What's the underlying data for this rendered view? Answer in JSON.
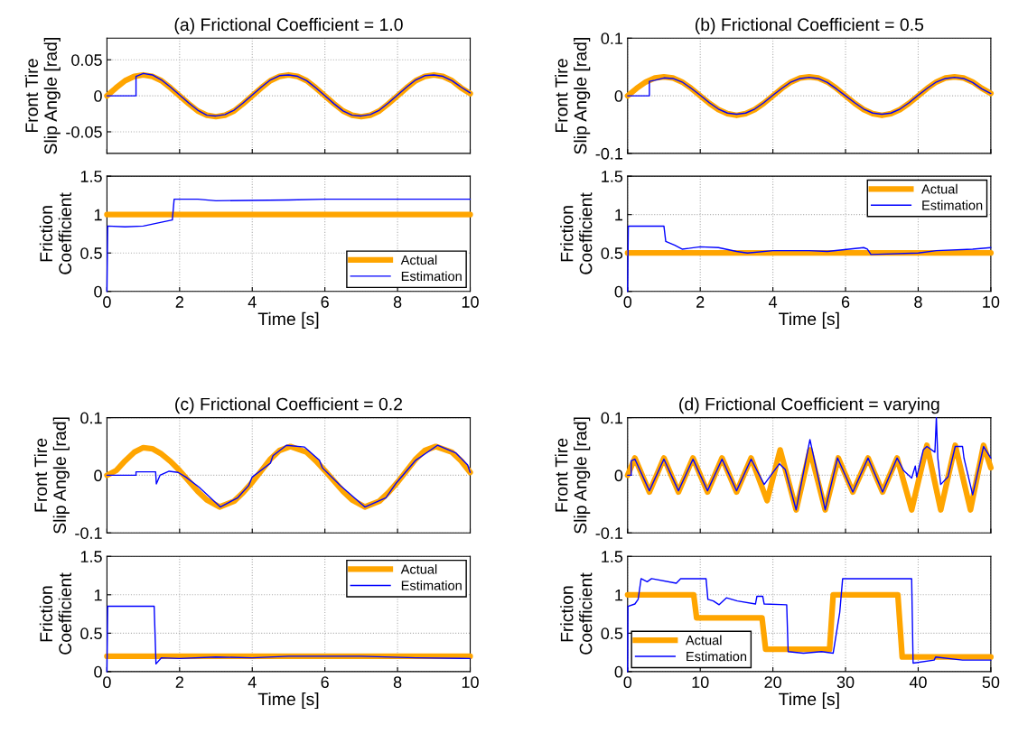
{
  "chart_data": [
    {
      "type": "line",
      "title": "(a) Frictional Coefficient = 1.0",
      "ylabel": "Front Tire\nSlip Angle [rad]",
      "xlim": [
        0,
        10
      ],
      "xticks": [
        0,
        2,
        4,
        6,
        8,
        10
      ],
      "ylim": [
        -0.08,
        0.08
      ],
      "yticks": [
        -0.05,
        0,
        0.05
      ],
      "grid": true,
      "tick_labels": "y",
      "series": [
        {
          "color": "#ffa500",
          "x": [
            0,
            0.25,
            0.5,
            0.75,
            1,
            1.25,
            1.5,
            1.75,
            2,
            2.25,
            2.5,
            2.75,
            3,
            3.25,
            3.5,
            3.75,
            4,
            4.25,
            4.5,
            4.75,
            5,
            5.25,
            5.5,
            5.75,
            6,
            6.25,
            6.5,
            6.75,
            7,
            7.25,
            7.5,
            7.75,
            8,
            8.25,
            8.5,
            8.75,
            9,
            9.25,
            9.5,
            9.75,
            10
          ],
          "values": [
            0,
            0.011,
            0.021,
            0.027,
            0.029,
            0.027,
            0.021,
            0.011,
            0,
            -0.011,
            -0.021,
            -0.027,
            -0.029,
            -0.027,
            -0.021,
            -0.011,
            0,
            0.011,
            0.021,
            0.027,
            0.029,
            0.027,
            0.021,
            0.011,
            0,
            -0.011,
            -0.021,
            -0.027,
            -0.029,
            -0.027,
            -0.021,
            -0.011,
            0,
            0.011,
            0.021,
            0.027,
            0.029,
            0.027,
            0.021,
            0.011,
            0.003
          ]
        },
        {
          "color": "#0000ff",
          "x": [
            0,
            0.8,
            0.8,
            1,
            1.25,
            1.5,
            1.75,
            2,
            2.25,
            2.5,
            2.75,
            3,
            3.25,
            3.5,
            3.75,
            4,
            4.25,
            4.5,
            4.75,
            5,
            5.25,
            5.5,
            5.75,
            6,
            6.25,
            6.5,
            6.75,
            7,
            7.25,
            7.5,
            7.75,
            8,
            8.25,
            8.5,
            8.75,
            9,
            9.25,
            9.5,
            9.75,
            10
          ],
          "values": [
            0,
            0,
            0.027,
            0.031,
            0.029,
            0.022,
            0.012,
            0.001,
            -0.01,
            -0.02,
            -0.027,
            -0.028,
            -0.026,
            -0.02,
            -0.01,
            0.001,
            0.012,
            0.022,
            0.028,
            0.029,
            0.027,
            0.021,
            0.011,
            0,
            -0.011,
            -0.021,
            -0.027,
            -0.028,
            -0.026,
            -0.02,
            -0.01,
            0.001,
            0.012,
            0.022,
            0.028,
            0.029,
            0.027,
            0.021,
            0.012,
            0.004
          ]
        }
      ]
    },
    {
      "type": "line",
      "title": "(b) Frictional Coefficient = 0.5",
      "ylabel": "Front Tire\nSlip Angle [rad]",
      "xlim": [
        0,
        10
      ],
      "xticks": [
        0,
        2,
        4,
        6,
        8,
        10
      ],
      "ylim": [
        -0.1,
        0.1
      ],
      "yticks": [
        -0.1,
        0,
        0.1
      ],
      "grid": true,
      "tick_labels": "y",
      "series": [
        {
          "color": "#ffa500",
          "x": [
            0,
            0.25,
            0.5,
            0.75,
            1,
            1.25,
            1.5,
            1.75,
            2,
            2.25,
            2.5,
            2.75,
            3,
            3.25,
            3.5,
            3.75,
            4,
            4.25,
            4.5,
            4.75,
            5,
            5.25,
            5.5,
            5.75,
            6,
            6.25,
            6.5,
            6.75,
            7,
            7.25,
            7.5,
            7.75,
            8,
            8.25,
            8.5,
            8.75,
            9,
            9.25,
            9.5,
            9.75,
            10
          ],
          "values": [
            0,
            0.013,
            0.024,
            0.031,
            0.033,
            0.031,
            0.024,
            0.013,
            0,
            -0.013,
            -0.024,
            -0.031,
            -0.034,
            -0.031,
            -0.024,
            -0.013,
            0,
            0.013,
            0.024,
            0.031,
            0.033,
            0.031,
            0.024,
            0.013,
            0,
            -0.013,
            -0.024,
            -0.031,
            -0.034,
            -0.031,
            -0.024,
            -0.013,
            0,
            0.013,
            0.024,
            0.031,
            0.033,
            0.031,
            0.024,
            0.013,
            0.004
          ]
        },
        {
          "color": "#0000ff",
          "x": [
            0,
            0.6,
            0.6,
            0.75,
            1,
            1.25,
            1.5,
            1.75,
            2,
            2.25,
            2.5,
            2.75,
            3,
            3.25,
            3.5,
            3.75,
            4,
            4.25,
            4.5,
            4.75,
            5,
            5.25,
            5.5,
            5.75,
            6,
            6.25,
            6.5,
            6.75,
            7,
            7.25,
            7.5,
            7.75,
            8,
            8.25,
            8.5,
            8.75,
            9,
            9.25,
            9.5,
            9.75,
            10
          ],
          "values": [
            0,
            0,
            0.025,
            0.027,
            0.031,
            0.03,
            0.024,
            0.013,
            0.001,
            -0.012,
            -0.023,
            -0.03,
            -0.032,
            -0.03,
            -0.023,
            -0.012,
            0.001,
            0.013,
            0.024,
            0.03,
            0.032,
            0.03,
            0.023,
            0.012,
            0,
            -0.012,
            -0.023,
            -0.03,
            -0.032,
            -0.03,
            -0.023,
            -0.012,
            0.001,
            0.013,
            0.024,
            0.03,
            0.032,
            0.03,
            0.023,
            0.012,
            0.004
          ]
        }
      ]
    },
    {
      "type": "line",
      "ylabel": "Friction\nCoefficient",
      "xlabel": "Time [s]",
      "xlim": [
        0,
        10
      ],
      "xticks": [
        0,
        2,
        4,
        6,
        8,
        10
      ],
      "ylim": [
        0,
        1.5
      ],
      "yticks": [
        0,
        0.5,
        1,
        1.5
      ],
      "grid": true,
      "legend": "bottom right",
      "series": [
        {
          "name": "Actual",
          "color": "#ffa500",
          "x": [
            0,
            10
          ],
          "values": [
            1,
            1
          ]
        },
        {
          "name": "Estimation",
          "color": "#0000ff",
          "x": [
            0,
            0.02,
            0.5,
            1,
            1.5,
            1.8,
            1.85,
            2.5,
            3,
            5,
            6,
            10
          ],
          "values": [
            0,
            0.85,
            0.84,
            0.85,
            0.9,
            0.93,
            1.2,
            1.2,
            1.18,
            1.19,
            1.2,
            1.2
          ]
        }
      ]
    },
    {
      "type": "line",
      "ylabel": "Friction\nCoefficient",
      "xlabel": "Time [s]",
      "xlim": [
        0,
        10
      ],
      "xticks": [
        0,
        2,
        4,
        6,
        8,
        10
      ],
      "ylim": [
        0,
        1.5
      ],
      "yticks": [
        0,
        0.5,
        1,
        1.5
      ],
      "grid": true,
      "legend": "upper right",
      "series": [
        {
          "name": "Actual",
          "color": "#ffa500",
          "x": [
            0,
            10
          ],
          "values": [
            0.5,
            0.5
          ]
        },
        {
          "name": "Estimation",
          "color": "#0000ff",
          "x": [
            0,
            0.02,
            1,
            1.05,
            1.3,
            1.5,
            2,
            2.5,
            3,
            3.3,
            4,
            5,
            5.5,
            6.5,
            6.6,
            6.7,
            8,
            8.5,
            9.5,
            10
          ],
          "values": [
            0,
            0.85,
            0.85,
            0.65,
            0.6,
            0.55,
            0.58,
            0.57,
            0.52,
            0.5,
            0.53,
            0.53,
            0.52,
            0.57,
            0.55,
            0.48,
            0.5,
            0.53,
            0.55,
            0.57
          ]
        }
      ]
    },
    {
      "type": "line",
      "title": "(c) Frictional Coefficient = 0.2",
      "ylabel": "Front Tire\nSlip Angle [rad]",
      "xlim": [
        0,
        10
      ],
      "xticks": [
        0,
        2,
        4,
        6,
        8,
        10
      ],
      "ylim": [
        -0.1,
        0.1
      ],
      "yticks": [
        -0.1,
        0,
        0.1
      ],
      "grid": true,
      "tick_labels": "y",
      "series": [
        {
          "color": "#ffa500",
          "x": [
            0,
            0.25,
            0.5,
            0.75,
            1,
            1.25,
            1.5,
            1.75,
            2,
            2.25,
            2.5,
            2.75,
            3.1,
            3.5,
            3.75,
            4,
            4.25,
            4.5,
            4.75,
            5.05,
            5.5,
            5.75,
            6,
            6.25,
            6.5,
            6.75,
            7.1,
            7.5,
            7.75,
            8,
            8.25,
            8.5,
            8.75,
            9.05,
            9.5,
            9.75,
            10
          ],
          "values": [
            0,
            0.008,
            0.025,
            0.04,
            0.048,
            0.046,
            0.037,
            0.024,
            0.008,
            -0.01,
            -0.028,
            -0.043,
            -0.055,
            -0.045,
            -0.03,
            -0.012,
            0.008,
            0.028,
            0.043,
            0.05,
            0.04,
            0.025,
            0.008,
            -0.01,
            -0.028,
            -0.043,
            -0.055,
            -0.045,
            -0.03,
            -0.012,
            0.008,
            0.028,
            0.043,
            0.05,
            0.04,
            0.025,
            0.005
          ]
        },
        {
          "color": "#0000ff",
          "x": [
            0,
            0.8,
            0.8,
            1.34,
            1.36,
            1.46,
            1.71,
            1.96,
            2.17,
            2.54,
            3.12,
            3.6,
            3.9,
            4.0,
            4.5,
            4.57,
            4.94,
            5.44,
            5.85,
            5.93,
            6.43,
            7.1,
            7.68,
            7.97,
            8.5,
            9.1,
            9.6,
            9.93,
            10
          ],
          "values": [
            0,
            0,
            0.006,
            0.006,
            -0.015,
            0,
            0.007,
            0.005,
            -0.003,
            -0.021,
            -0.055,
            -0.039,
            -0.018,
            -0.003,
            0.021,
            0.034,
            0.052,
            0.049,
            0.026,
            0.013,
            -0.018,
            -0.055,
            -0.039,
            -0.013,
            0.026,
            0.052,
            0.039,
            0.018,
            0.005
          ]
        }
      ]
    },
    {
      "type": "line",
      "title": "(d) Frictional Coefficient = varying",
      "ylabel": "Front Tire\nSlip Angle [rad]",
      "xlim": [
        0,
        50
      ],
      "xticks": [
        0,
        10,
        20,
        30,
        40,
        50
      ],
      "ylim": [
        -0.1,
        0.1
      ],
      "yticks": [
        -0.1,
        0,
        0.1
      ],
      "grid": true,
      "tick_labels": "y",
      "series": [
        {
          "color": "#ffa500",
          "x": [
            0,
            1,
            3,
            5,
            7,
            9,
            11,
            13,
            15,
            17,
            19.2,
            21,
            23.2,
            25.1,
            27.2,
            29,
            31,
            33.1,
            35.1,
            37.1,
            39.1,
            41.2,
            43.1,
            45.1,
            47.2,
            49,
            50
          ],
          "values": [
            0,
            0.03,
            -0.029,
            0.03,
            -0.029,
            0.03,
            -0.029,
            0.03,
            -0.029,
            0.03,
            -0.044,
            0.044,
            -0.06,
            0.044,
            -0.06,
            0.03,
            -0.029,
            0.03,
            -0.029,
            0.03,
            -0.06,
            0.052,
            -0.06,
            0.052,
            -0.06,
            0.052,
            0.013
          ]
        },
        {
          "color": "#0000ff",
          "x": [
            0,
            0.5,
            0.5,
            1,
            3,
            5,
            7,
            9,
            11,
            13,
            15,
            17,
            18.8,
            20.9,
            21.7,
            23.2,
            25.1,
            27.2,
            28.9,
            31,
            33.1,
            35.1,
            37.1,
            38,
            39.1,
            39.6,
            39.8,
            40.7,
            41.2,
            42.3,
            42.5,
            42.7,
            43.1,
            44.1,
            45.1,
            46.1,
            46.3,
            47.5,
            49,
            50
          ],
          "values": [
            0,
            0,
            0.025,
            0.028,
            -0.027,
            0.028,
            -0.027,
            0.028,
            -0.027,
            0.028,
            -0.027,
            0.028,
            -0.016,
            0.02,
            0.01,
            -0.06,
            0.062,
            -0.06,
            0.03,
            -0.029,
            0.03,
            -0.029,
            0.03,
            0.008,
            -0.005,
            0.016,
            -0.003,
            0.044,
            0.05,
            0.04,
            0.1,
            0.03,
            -0.016,
            -0.003,
            0.05,
            0.05,
            0.03,
            -0.034,
            0.05,
            0.03
          ]
        }
      ]
    },
    {
      "type": "line",
      "ylabel": "Friction\nCoefficient",
      "xlabel": "Time [s]",
      "xlim": [
        0,
        10
      ],
      "xticks": [
        0,
        2,
        4,
        6,
        8,
        10
      ],
      "ylim": [
        0,
        1.5
      ],
      "yticks": [
        0,
        0.5,
        1,
        1.5
      ],
      "grid": true,
      "legend": "upper right",
      "series": [
        {
          "name": "Actual",
          "color": "#ffa500",
          "x": [
            0,
            10
          ],
          "values": [
            0.2,
            0.2
          ]
        },
        {
          "name": "Estimation",
          "color": "#0000ff",
          "x": [
            0,
            0.02,
            1.3,
            1.35,
            1.5,
            2,
            3,
            4,
            5,
            7,
            8.5,
            10
          ],
          "values": [
            0,
            0.85,
            0.85,
            0.1,
            0.18,
            0.17,
            0.19,
            0.18,
            0.2,
            0.2,
            0.18,
            0.17
          ]
        }
      ]
    },
    {
      "type": "line",
      "ylabel": "Friction\nCoefficient",
      "xlabel": "Time [s]",
      "xlim": [
        0,
        50
      ],
      "xticks": [
        0,
        10,
        20,
        30,
        40,
        50
      ],
      "ylim": [
        0,
        1.5
      ],
      "yticks": [
        0,
        0.5,
        1,
        1.5
      ],
      "grid": true,
      "legend": "bottom left",
      "series": [
        {
          "name": "Actual",
          "color": "#ffa500",
          "x": [
            0,
            9.1,
            9.5,
            18.5,
            19,
            27.8,
            28.3,
            37.2,
            37.8,
            50
          ],
          "values": [
            1,
            1,
            0.7,
            0.7,
            0.29,
            0.29,
            1,
            1,
            0.19,
            0.19
          ]
        },
        {
          "name": "Estimation",
          "color": "#0000ff",
          "x": [
            0,
            0.05,
            1,
            1.45,
            1.86,
            2.7,
            3.3,
            6.7,
            7.3,
            10.8,
            11.05,
            11.8,
            12.6,
            13.6,
            15.1,
            17.6,
            17.8,
            18.6,
            18.8,
            21.9,
            22.1,
            24.2,
            26.7,
            28.3,
            29.2,
            29.6,
            39.1,
            39.3,
            42.2,
            42.4,
            46.1,
            50
          ],
          "values": [
            0,
            0.85,
            0.88,
            0.94,
            1.21,
            1.17,
            1.21,
            1.15,
            1.21,
            1.21,
            0.94,
            0.92,
            0.87,
            0.96,
            0.92,
            0.88,
            0.98,
            0.98,
            0.88,
            0.87,
            0.26,
            0.24,
            0.26,
            0.24,
            0.77,
            1.21,
            1.21,
            0.11,
            0.15,
            0.19,
            0.15,
            0.15
          ]
        }
      ]
    }
  ]
}
